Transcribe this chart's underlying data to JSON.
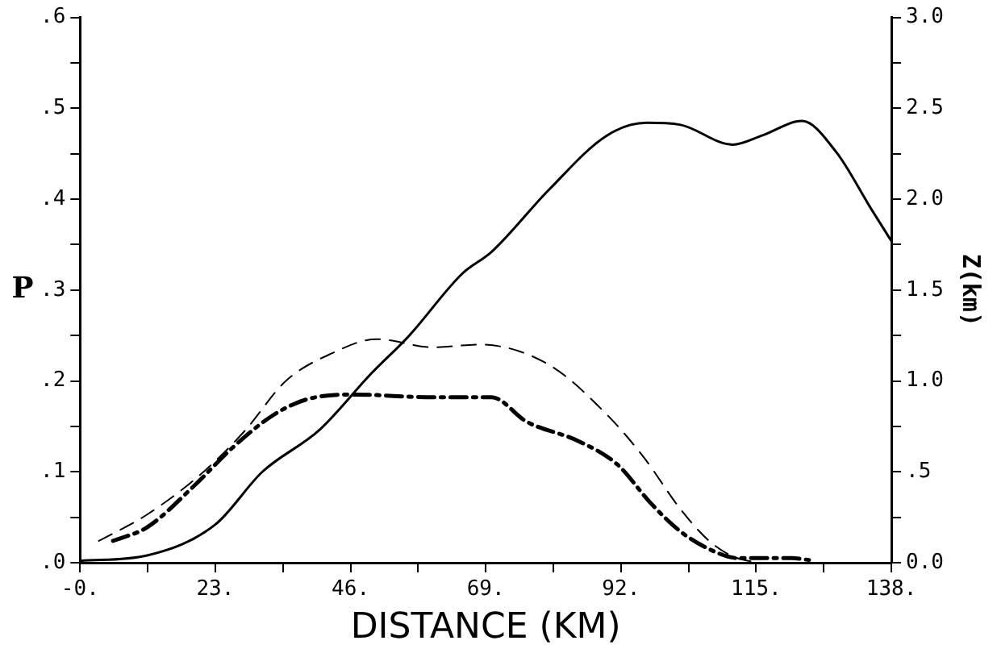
{
  "chart_data": {
    "type": "line",
    "xlabel": "DISTANCE (KM)",
    "ylabel": "P",
    "y2label": "Z(km)",
    "xlim": [
      0,
      138
    ],
    "xticks": [
      {
        "value": 0,
        "label": "-0."
      },
      {
        "value": 11.5,
        "label": null
      },
      {
        "value": 23,
        "label": "23."
      },
      {
        "value": 34.5,
        "label": null
      },
      {
        "value": 46,
        "label": "46."
      },
      {
        "value": 57.5,
        "label": null
      },
      {
        "value": 69,
        "label": "69."
      },
      {
        "value": 80.5,
        "label": null
      },
      {
        "value": 92,
        "label": "92."
      },
      {
        "value": 103.5,
        "label": null
      },
      {
        "value": 115,
        "label": "115."
      },
      {
        "value": 126.5,
        "label": null
      },
      {
        "value": 138,
        "label": "138."
      }
    ],
    "ylim": [
      0,
      0.6
    ],
    "yticks": [
      {
        "value": 0,
        "label": ".0"
      },
      {
        "value": 0.05,
        "label": null
      },
      {
        "value": 0.1,
        "label": ".1"
      },
      {
        "value": 0.15,
        "label": null
      },
      {
        "value": 0.2,
        "label": ".2"
      },
      {
        "value": 0.25,
        "label": null
      },
      {
        "value": 0.3,
        "label": ".3"
      },
      {
        "value": 0.35,
        "label": null
      },
      {
        "value": 0.4,
        "label": ".4"
      },
      {
        "value": 0.45,
        "label": null
      },
      {
        "value": 0.5,
        "label": ".5"
      },
      {
        "value": 0.55,
        "label": null
      },
      {
        "value": 0.6,
        "label": ".6"
      }
    ],
    "y2lim": [
      0,
      3
    ],
    "y2ticks": [
      {
        "value": 0,
        "label": "0.0"
      },
      {
        "value": 0.25,
        "label": null
      },
      {
        "value": 0.5,
        "label": ".5"
      },
      {
        "value": 0.75,
        "label": null
      },
      {
        "value": 1,
        "label": "1.0"
      },
      {
        "value": 1.25,
        "label": null
      },
      {
        "value": 1.5,
        "label": "1.5"
      },
      {
        "value": 1.75,
        "label": null
      },
      {
        "value": 2,
        "label": "2.0"
      },
      {
        "value": 2.25,
        "label": null
      },
      {
        "value": 2.5,
        "label": "2.5"
      },
      {
        "value": 2.75,
        "label": null
      },
      {
        "value": 3,
        "label": "3.0"
      }
    ],
    "grid": false,
    "legend": false,
    "marker": "none",
    "series": [
      {
        "color": "#000000",
        "axis": "y2",
        "line_style": "solid",
        "x": [
          0,
          11.4,
          23,
          31,
          40.7,
          49.5,
          56,
          65,
          70,
          79.7,
          89.6,
          96.4,
          102,
          111,
          116,
          122.8,
          128.6,
          134.5,
          138
        ],
        "values": [
          0.01,
          0.04,
          0.21,
          0.5,
          0.73,
          1.04,
          1.25,
          1.59,
          1.71,
          2.05,
          2.35,
          2.42,
          2.41,
          2.3,
          2.35,
          2.43,
          2.26,
          1.95,
          1.77
        ]
      },
      {
        "color": "#000000",
        "axis": "y",
        "line_style": "dashed",
        "x": [
          3.2,
          11.4,
          21,
          28,
          35,
          42.7,
          50.4,
          60,
          68,
          79.7,
          89.6,
          96,
          102,
          107,
          111,
          115
        ],
        "values": [
          0.024,
          0.053,
          0.1,
          0.145,
          0.2,
          0.23,
          0.246,
          0.237,
          0.24,
          0.218,
          0.163,
          0.115,
          0.06,
          0.024,
          0.007,
          0.0
        ]
      },
      {
        "color": "#000000",
        "axis": "y",
        "line_style": "dashdot",
        "x": [
          5.6,
          11.4,
          19.3,
          26,
          33,
          38.7,
          46.6,
          60,
          70,
          76,
          84.7,
          91.4,
          97,
          102,
          107,
          112,
          121,
          124
        ],
        "values": [
          0.024,
          0.039,
          0.084,
          0.127,
          0.163,
          0.18,
          0.185,
          0.182,
          0.182,
          0.155,
          0.134,
          0.108,
          0.066,
          0.035,
          0.015,
          0.005,
          0.005,
          0.003
        ]
      }
    ]
  }
}
